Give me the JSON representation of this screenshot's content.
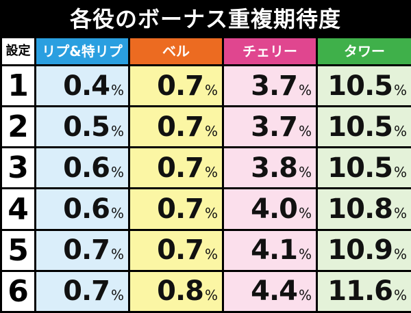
{
  "title": "各役のボーナス重複期待度",
  "header": {
    "setting": "設定",
    "columns": [
      {
        "label": "リプ&特リプ",
        "header_color": "#2a9fe0",
        "cell_color": "#daeefa"
      },
      {
        "label": "ベル",
        "header_color": "#ec6b21",
        "cell_color": "#fbf6a4"
      },
      {
        "label": "チェリー",
        "header_color": "#e0468f",
        "cell_color": "#fbdfec"
      },
      {
        "label": "タワー",
        "header_color": "#3fb04a",
        "cell_color": "#e4f2d9"
      }
    ]
  },
  "unit": "%",
  "rows": [
    {
      "setting": "1",
      "values": [
        "0.4",
        "0.7",
        "3.7",
        "10.5"
      ]
    },
    {
      "setting": "2",
      "values": [
        "0.5",
        "0.7",
        "3.7",
        "10.5"
      ]
    },
    {
      "setting": "3",
      "values": [
        "0.6",
        "0.7",
        "3.8",
        "10.5"
      ]
    },
    {
      "setting": "4",
      "values": [
        "0.6",
        "0.7",
        "4.0",
        "10.8"
      ]
    },
    {
      "setting": "5",
      "values": [
        "0.7",
        "0.7",
        "4.1",
        "10.9"
      ]
    },
    {
      "setting": "6",
      "values": [
        "0.7",
        "0.8",
        "4.4",
        "11.6"
      ]
    }
  ]
}
